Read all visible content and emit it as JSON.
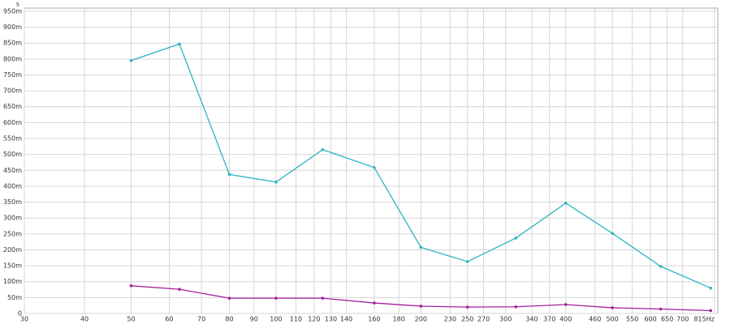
{
  "chart_data": {
    "type": "line",
    "y_unit": "s",
    "x_log": true,
    "grid": true,
    "xlim": [
      30,
      828
    ],
    "ylim": [
      0,
      0.96
    ],
    "xticks": [
      30,
      40,
      50,
      60,
      70,
      80,
      90,
      100,
      110,
      120,
      130,
      140,
      160,
      180,
      200,
      230,
      250,
      270,
      300,
      340,
      370,
      400,
      460,
      500,
      550,
      600,
      650,
      700,
      {
        "value": 815,
        "label": "815Hz"
      }
    ],
    "yticks": [
      0,
      {
        "value": 0.05,
        "label": "50m"
      },
      {
        "value": 0.1,
        "label": "100m"
      },
      {
        "value": 0.15,
        "label": "150m"
      },
      {
        "value": 0.2,
        "label": "200m"
      },
      {
        "value": 0.25,
        "label": "250m"
      },
      {
        "value": 0.3,
        "label": "300m"
      },
      {
        "value": 0.35,
        "label": "350m"
      },
      {
        "value": 0.4,
        "label": "400m"
      },
      {
        "value": 0.45,
        "label": "450m"
      },
      {
        "value": 0.5,
        "label": "500m"
      },
      {
        "value": 0.55,
        "label": "550m"
      },
      {
        "value": 0.6,
        "label": "600m"
      },
      {
        "value": 0.65,
        "label": "650m"
      },
      {
        "value": 0.7,
        "label": "700m"
      },
      {
        "value": 0.75,
        "label": "750m"
      },
      {
        "value": 0.8,
        "label": "800m"
      },
      {
        "value": 0.85,
        "label": "850m"
      },
      {
        "value": 0.9,
        "label": "900m"
      },
      {
        "value": 0.95,
        "label": "950m"
      }
    ],
    "x": [
      50,
      63,
      80,
      100,
      125,
      160,
      200,
      250,
      315,
      400,
      500,
      630,
      800
    ],
    "series": [
      {
        "color": "#2bb5c0",
        "values": [
          0.795,
          0.847,
          0.437,
          0.413,
          0.515,
          0.459,
          0.208,
          0.163,
          0.237,
          0.347,
          0.252,
          0.148,
          0.08
        ]
      },
      {
        "color": "#a3209c",
        "values": [
          0.087,
          0.076,
          0.048,
          0.048,
          0.048,
          0.033,
          0.023,
          0.02,
          0.021,
          0.028,
          0.018,
          0.014,
          0.009
        ]
      }
    ]
  }
}
